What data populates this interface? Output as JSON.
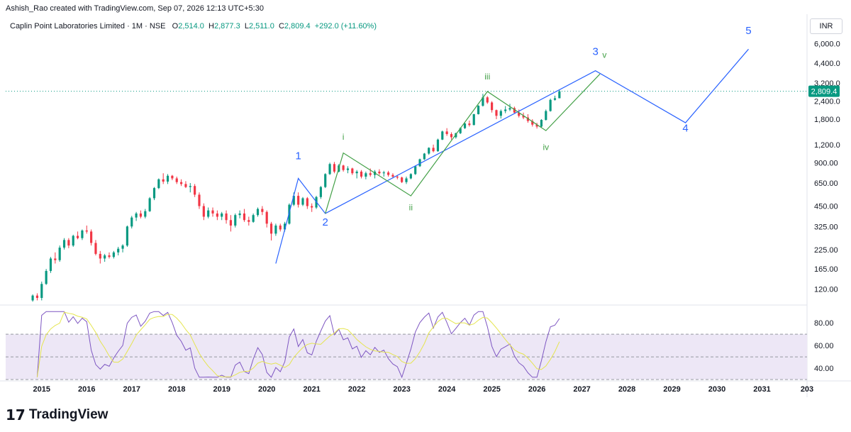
{
  "attribution": "Ashish_Rao created with TradingView.com, Sep 07, 2026 12:13 UTC+5:30",
  "legend": {
    "symbol": "Caplin Point Laboratories Limited · 1M · NSE",
    "o_label": "O",
    "o_value": "2,514.0",
    "h_label": "H",
    "h_value": "2,877.3",
    "l_label": "L",
    "l_value": "2,511.0",
    "c_label": "C",
    "c_value": "2,809.4",
    "change": "+292.0 (+11.60%)"
  },
  "currency": "INR",
  "price_axis": {
    "ticks": [
      "6,000.0",
      "4,400.0",
      "3,200.0",
      "2,400.0",
      "1,800.0",
      "1,200.0",
      "900.00",
      "650.00",
      "450.00",
      "325.00",
      "225.00",
      "165.00",
      "120.00"
    ],
    "last_price": "2,809.4"
  },
  "rsi_axis": {
    "ticks": [
      "80.00",
      "60.00",
      "40.00"
    ]
  },
  "time_axis": {
    "ticks": [
      "2015",
      "2016",
      "2017",
      "2018",
      "2019",
      "2020",
      "2021",
      "2022",
      "2023",
      "2024",
      "2025",
      "2026",
      "2027",
      "2028",
      "2029",
      "2030",
      "2031",
      "203"
    ]
  },
  "wave_labels": {
    "major": [
      "1",
      "2",
      "3",
      "4",
      "5"
    ],
    "minor": [
      "i",
      "ii",
      "iii",
      "iv",
      "v"
    ]
  },
  "colors": {
    "up": "#089981",
    "down": "#f23645",
    "major_wave": "#2962ff",
    "minor_wave": "#43a047",
    "rsi_line": "#7e57c2",
    "rsi_ma": "#e5e54f",
    "rsi_band": "#ede7f6"
  },
  "chart_data": {
    "type": "candlestick",
    "interval": "1M",
    "y_scale": "log",
    "ylim": [
      95,
      7000
    ],
    "x_range": [
      2014.2,
      2032
    ],
    "candles_approx": [
      [
        2014.8,
        100,
        110,
        98,
        108
      ],
      [
        2014.9,
        108,
        112,
        100,
        104
      ],
      [
        2015.0,
        104,
        135,
        100,
        130
      ],
      [
        2015.1,
        130,
        165,
        128,
        160
      ],
      [
        2015.2,
        160,
        200,
        155,
        195
      ],
      [
        2015.3,
        195,
        215,
        180,
        190
      ],
      [
        2015.4,
        190,
        240,
        185,
        232
      ],
      [
        2015.5,
        232,
        270,
        225,
        262
      ],
      [
        2015.6,
        262,
        270,
        230,
        240
      ],
      [
        2015.7,
        240,
        285,
        235,
        280
      ],
      [
        2015.8,
        280,
        300,
        265,
        270
      ],
      [
        2015.9,
        270,
        310,
        262,
        305
      ],
      [
        2016.0,
        305,
        330,
        290,
        300
      ],
      [
        2016.1,
        300,
        310,
        240,
        250
      ],
      [
        2016.2,
        250,
        262,
        205,
        210
      ],
      [
        2016.3,
        210,
        220,
        180,
        195
      ],
      [
        2016.4,
        195,
        210,
        185,
        205
      ],
      [
        2016.5,
        205,
        215,
        195,
        200
      ],
      [
        2016.6,
        200,
        220,
        195,
        215
      ],
      [
        2016.7,
        215,
        235,
        205,
        228
      ],
      [
        2016.8,
        228,
        245,
        215,
        240
      ],
      [
        2016.9,
        240,
        330,
        235,
        325
      ],
      [
        2017.0,
        325,
        385,
        315,
        375
      ],
      [
        2017.1,
        375,
        410,
        355,
        400
      ],
      [
        2017.2,
        400,
        420,
        370,
        380
      ],
      [
        2017.3,
        380,
        430,
        370,
        415
      ],
      [
        2017.4,
        415,
        520,
        410,
        510
      ],
      [
        2017.5,
        510,
        610,
        495,
        600
      ],
      [
        2017.6,
        600,
        700,
        590,
        690
      ],
      [
        2017.7,
        690,
        760,
        640,
        665
      ],
      [
        2017.8,
        665,
        750,
        640,
        730
      ],
      [
        2017.9,
        730,
        740,
        680,
        700
      ],
      [
        2018.0,
        700,
        720,
        640,
        660
      ],
      [
        2018.1,
        660,
        690,
        620,
        640
      ],
      [
        2018.2,
        640,
        670,
        600,
        610
      ],
      [
        2018.3,
        610,
        650,
        560,
        620
      ],
      [
        2018.4,
        620,
        640,
        520,
        540
      ],
      [
        2018.5,
        540,
        560,
        430,
        450
      ],
      [
        2018.6,
        450,
        470,
        360,
        380
      ],
      [
        2018.7,
        380,
        440,
        370,
        420
      ],
      [
        2018.8,
        420,
        440,
        380,
        400
      ],
      [
        2018.9,
        400,
        420,
        360,
        380
      ],
      [
        2019.0,
        380,
        410,
        360,
        400
      ],
      [
        2019.1,
        400,
        420,
        340,
        360
      ],
      [
        2019.2,
        360,
        390,
        300,
        330
      ],
      [
        2019.3,
        330,
        400,
        320,
        390
      ],
      [
        2019.4,
        390,
        420,
        370,
        400
      ],
      [
        2019.5,
        400,
        430,
        350,
        360
      ],
      [
        2019.6,
        360,
        380,
        330,
        350
      ],
      [
        2019.7,
        350,
        400,
        345,
        390
      ],
      [
        2019.8,
        390,
        440,
        380,
        430
      ],
      [
        2019.9,
        430,
        450,
        390,
        410
      ],
      [
        2020.0,
        410,
        420,
        320,
        340
      ],
      [
        2020.1,
        340,
        350,
        260,
        290
      ],
      [
        2020.2,
        290,
        340,
        280,
        330
      ],
      [
        2020.3,
        330,
        340,
        300,
        310
      ],
      [
        2020.4,
        310,
        350,
        300,
        340
      ],
      [
        2020.5,
        340,
        470,
        335,
        460
      ],
      [
        2020.6,
        460,
        560,
        450,
        530
      ],
      [
        2020.7,
        530,
        560,
        440,
        460
      ],
      [
        2020.8,
        460,
        520,
        450,
        510
      ],
      [
        2020.9,
        510,
        520,
        430,
        450
      ],
      [
        2021.0,
        450,
        470,
        410,
        440
      ],
      [
        2021.1,
        440,
        530,
        430,
        520
      ],
      [
        2021.2,
        520,
        620,
        505,
        610
      ],
      [
        2021.3,
        610,
        760,
        600,
        750
      ],
      [
        2021.4,
        750,
        900,
        740,
        880
      ],
      [
        2021.5,
        880,
        910,
        760,
        780
      ],
      [
        2021.6,
        780,
        880,
        770,
        860
      ],
      [
        2021.7,
        860,
        870,
        780,
        800
      ],
      [
        2021.8,
        800,
        850,
        760,
        820
      ],
      [
        2021.9,
        820,
        830,
        740,
        760
      ],
      [
        2022.0,
        760,
        800,
        700,
        780
      ],
      [
        2022.1,
        780,
        800,
        700,
        720
      ],
      [
        2022.2,
        720,
        780,
        690,
        760
      ],
      [
        2022.3,
        760,
        820,
        720,
        740
      ],
      [
        2022.4,
        740,
        800,
        700,
        780
      ],
      [
        2022.5,
        780,
        810,
        740,
        760
      ],
      [
        2022.6,
        760,
        790,
        720,
        770
      ],
      [
        2022.7,
        770,
        790,
        720,
        740
      ],
      [
        2022.8,
        740,
        760,
        700,
        720
      ],
      [
        2022.9,
        720,
        740,
        690,
        710
      ],
      [
        2023.0,
        710,
        720,
        650,
        660
      ],
      [
        2023.1,
        660,
        720,
        640,
        700
      ],
      [
        2023.2,
        700,
        760,
        690,
        750
      ],
      [
        2023.3,
        750,
        860,
        740,
        850
      ],
      [
        2023.4,
        850,
        960,
        840,
        950
      ],
      [
        2023.5,
        950,
        1050,
        940,
        1040
      ],
      [
        2023.6,
        1040,
        1150,
        1020,
        1140
      ],
      [
        2023.7,
        1140,
        1200,
        1060,
        1080
      ],
      [
        2023.8,
        1080,
        1320,
        1070,
        1300
      ],
      [
        2023.9,
        1300,
        1500,
        1290,
        1480
      ],
      [
        2024.0,
        1480,
        1560,
        1380,
        1420
      ],
      [
        2024.1,
        1420,
        1460,
        1300,
        1350
      ],
      [
        2024.2,
        1350,
        1450,
        1320,
        1440
      ],
      [
        2024.3,
        1440,
        1580,
        1420,
        1560
      ],
      [
        2024.4,
        1560,
        1700,
        1540,
        1680
      ],
      [
        2024.5,
        1680,
        1760,
        1600,
        1640
      ],
      [
        2024.6,
        1640,
        1960,
        1630,
        1950
      ],
      [
        2024.7,
        1950,
        2250,
        1940,
        2230
      ],
      [
        2024.8,
        2230,
        2700,
        2200,
        2550
      ],
      [
        2024.9,
        2550,
        2600,
        2300,
        2350
      ],
      [
        2025.0,
        2350,
        2400,
        2000,
        2080
      ],
      [
        2025.1,
        2080,
        2100,
        1800,
        1900
      ],
      [
        2025.2,
        1900,
        2100,
        1820,
        2050
      ],
      [
        2025.3,
        2050,
        2220,
        1980,
        2100
      ],
      [
        2025.4,
        2100,
        2300,
        2050,
        2150
      ],
      [
        2025.5,
        2150,
        2200,
        1980,
        2000
      ],
      [
        2025.6,
        2000,
        2100,
        1850,
        1900
      ],
      [
        2025.7,
        1900,
        2000,
        1800,
        1850
      ],
      [
        2025.8,
        1850,
        1950,
        1700,
        1750
      ],
      [
        2025.9,
        1750,
        1800,
        1600,
        1650
      ],
      [
        2026.0,
        1650,
        1700,
        1550,
        1600
      ],
      [
        2026.1,
        1600,
        1800,
        1580,
        1780
      ],
      [
        2026.2,
        1780,
        2100,
        1760,
        2050
      ],
      [
        2026.3,
        2050,
        2500,
        2030,
        2450
      ],
      [
        2026.4,
        2450,
        2620,
        2420,
        2514
      ],
      [
        2026.5,
        2514,
        2877.3,
        2511,
        2809.4
      ]
    ],
    "last_close": 2809.4,
    "rsi_ylim": [
      30,
      92
    ]
  }
}
